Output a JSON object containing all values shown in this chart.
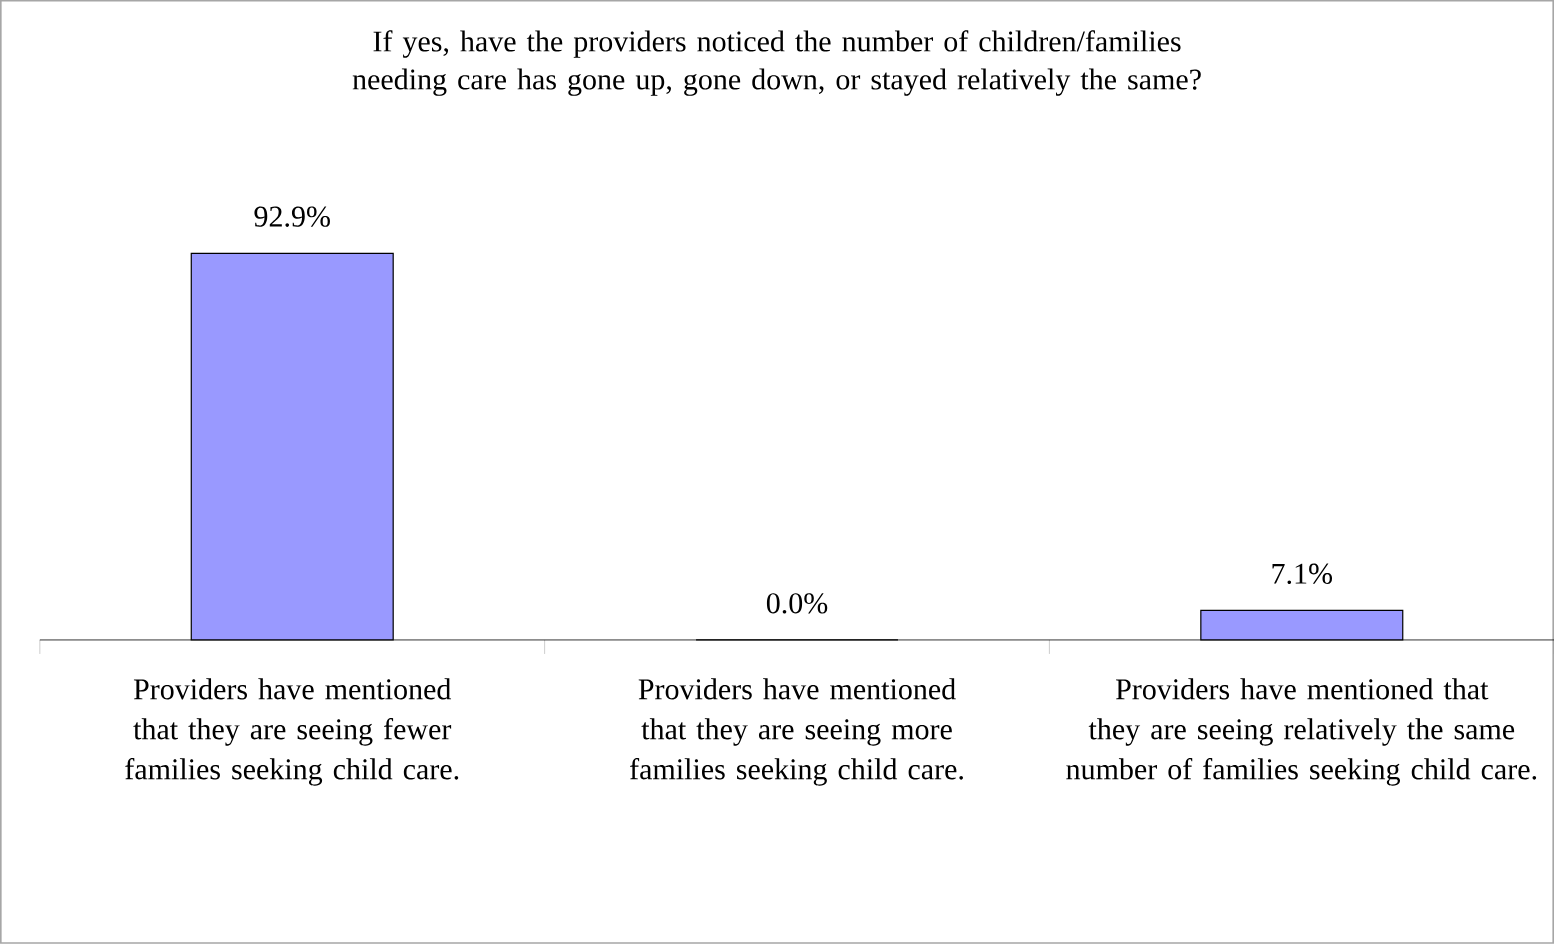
{
  "chart_data": {
    "type": "bar",
    "title": "If yes, have the providers noticed the number of children/families needing care has gone up, gone down, or stayed relatively the same?",
    "categories": [
      "Providers have mentioned that they are seeing fewer families seeking child care.",
      "Providers have mentioned that they are seeing more families seeking child care.",
      "Providers have mentioned that they are seeing relatively the same number of families seeking child care."
    ],
    "values": [
      92.9,
      0.0,
      7.1
    ],
    "value_labels": [
      "92.9%",
      "0.0%",
      "7.1%"
    ],
    "color": "#9999ff"
  }
}
